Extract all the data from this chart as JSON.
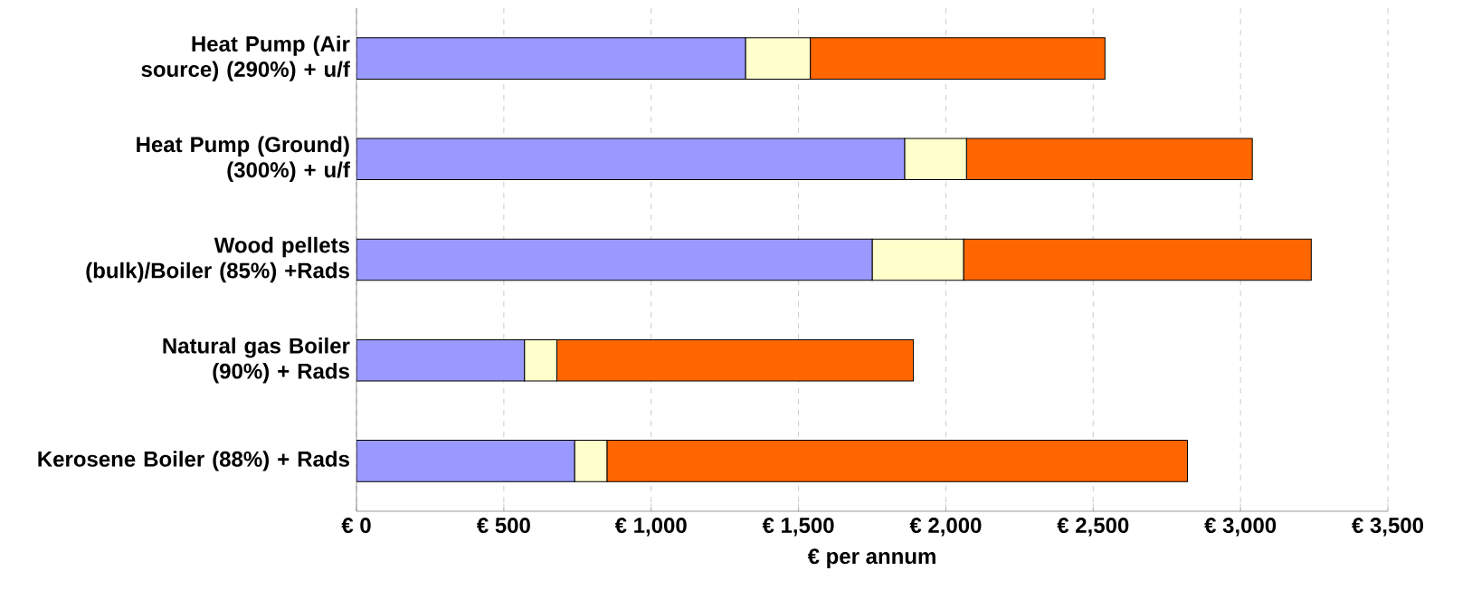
{
  "chart_data": {
    "type": "bar",
    "orientation": "horizontal",
    "stacked": true,
    "xlabel": "€ per annum",
    "categories": [
      "Heat Pump (Air source) (290%) + u/f",
      "Heat Pump (Ground) (300%) + u/f",
      "Wood pellets (bulk)/Boiler (85%) +Rads",
      "Natural gas Boiler (90%) + Rads",
      "Kerosene Boiler (88%) + Rads"
    ],
    "series": [
      {
        "color": "#9999ff",
        "values": [
          1320,
          1860,
          1750,
          570,
          740
        ]
      },
      {
        "color": "#ffffcc",
        "values": [
          220,
          210,
          310,
          110,
          110
        ]
      },
      {
        "color": "#ff6600",
        "values": [
          1000,
          970,
          1180,
          1210,
          1970
        ]
      }
    ],
    "xlim": [
      0,
      3500
    ],
    "xticks": [
      {
        "value": 0,
        "label": "€ 0"
      },
      {
        "value": 500,
        "label": "€ 500"
      },
      {
        "value": 1000,
        "label": "€ 1,000"
      },
      {
        "value": 1500,
        "label": "€ 1,500"
      },
      {
        "value": 2000,
        "label": "€ 2,000"
      },
      {
        "value": 2500,
        "label": "€ 2,500"
      },
      {
        "value": 3000,
        "label": "€ 3,000"
      },
      {
        "value": 3500,
        "label": "€ 3,500"
      }
    ],
    "grid": "x"
  }
}
